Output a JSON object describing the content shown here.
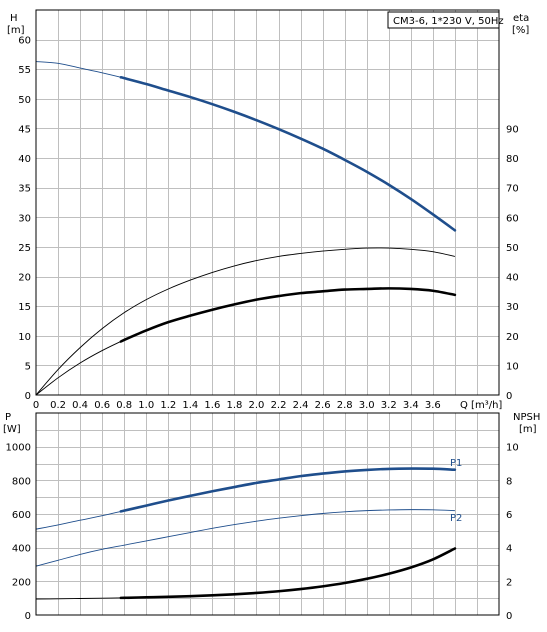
{
  "chart_data": [
    {
      "type": "line",
      "title_box": "CM3-6, 1*230 V, 50Hz",
      "xlabel": "Q [m³/h]",
      "ylabel_left": [
        "H",
        "[m]"
      ],
      "ylabel_right": [
        "eta",
        "[%]"
      ],
      "xlim": [
        0,
        4.2
      ],
      "ylim_left": [
        0,
        65
      ],
      "ylim_right": [
        0,
        130
      ],
      "x_ticks": [
        "0",
        "0.2",
        "0.4",
        "0.6",
        "0.8",
        "1.0",
        "1.2",
        "1.4",
        "1.6",
        "1.8",
        "2.0",
        "2.2",
        "2.4",
        "2.6",
        "2.8",
        "3.0",
        "3.2",
        "3.4",
        "3.6"
      ],
      "y_ticks_left": [
        "0",
        "5",
        "10",
        "15",
        "20",
        "25",
        "30",
        "35",
        "40",
        "45",
        "50",
        "55",
        "60"
      ],
      "y_ticks_right": [
        "0",
        "10",
        "20",
        "30",
        "40",
        "50",
        "60",
        "70",
        "80",
        "90"
      ],
      "grid": true,
      "series": [
        {
          "axis": "left",
          "color": "#1f4e8c",
          "x": [
            0,
            0.2,
            0.4,
            0.6,
            0.8,
            1.0,
            1.2,
            1.4,
            1.6,
            1.8,
            2.0,
            2.2,
            2.4,
            2.6,
            2.8,
            3.0,
            3.2,
            3.4,
            3.6,
            3.8
          ],
          "values": [
            56.3,
            56.0,
            55.2,
            54.4,
            53.5,
            52.5,
            51.4,
            50.3,
            49.1,
            47.8,
            46.4,
            44.9,
            43.3,
            41.6,
            39.7,
            37.7,
            35.5,
            33.1,
            30.5,
            27.8
          ],
          "bold_from": 0.77
        },
        {
          "axis": "left",
          "color": "#000000",
          "x": [
            0,
            0.2,
            0.4,
            0.6,
            0.8,
            1.0,
            1.2,
            1.4,
            1.6,
            1.8,
            2.0,
            2.2,
            2.4,
            2.6,
            2.8,
            3.0,
            3.2,
            3.4,
            3.6,
            3.8
          ],
          "values": [
            0,
            4.3,
            8.0,
            11.2,
            13.9,
            16.1,
            17.9,
            19.4,
            20.7,
            21.8,
            22.7,
            23.4,
            23.9,
            24.3,
            24.6,
            24.8,
            24.8,
            24.6,
            24.2,
            23.4
          ],
          "bold_from": null
        },
        {
          "axis": "left",
          "color": "#000000",
          "x": [
            0,
            0.2,
            0.4,
            0.6,
            0.8,
            1.0,
            1.2,
            1.4,
            1.6,
            1.8,
            2.0,
            2.2,
            2.4,
            2.6,
            2.8,
            3.0,
            3.2,
            3.4,
            3.6,
            3.8
          ],
          "values": [
            0,
            2.9,
            5.4,
            7.5,
            9.3,
            10.9,
            12.3,
            13.4,
            14.4,
            15.3,
            16.1,
            16.7,
            17.2,
            17.5,
            17.8,
            17.9,
            18.0,
            17.9,
            17.6,
            16.9
          ],
          "bold_from": 0.77
        }
      ]
    },
    {
      "type": "line",
      "xlim": [
        0,
        4.2
      ],
      "ylim_left": [
        0,
        1200
      ],
      "ylim_right": [
        0,
        12
      ],
      "ylabel_left": [
        "P",
        "[W]"
      ],
      "ylabel_right": [
        "NPSH",
        "[m]"
      ],
      "y_ticks_left": [
        "0",
        "200",
        "400",
        "600",
        "800",
        "1000"
      ],
      "y_ticks_right": [
        "0",
        "2",
        "4",
        "6",
        "8",
        "10"
      ],
      "grid": true,
      "series": [
        {
          "name": "P1",
          "axis": "left",
          "color": "#1f4e8c",
          "x": [
            0,
            0.2,
            0.4,
            0.6,
            0.8,
            1.0,
            1.2,
            1.4,
            1.6,
            1.8,
            2.0,
            2.2,
            2.4,
            2.6,
            2.8,
            3.0,
            3.2,
            3.4,
            3.6,
            3.8
          ],
          "values": [
            510,
            535,
            563,
            590,
            620,
            650,
            680,
            708,
            735,
            760,
            785,
            805,
            825,
            840,
            853,
            862,
            868,
            870,
            869,
            863
          ],
          "bold_from": 0.77
        },
        {
          "name": "P2",
          "axis": "left",
          "color": "#1f4e8c",
          "x": [
            0,
            0.2,
            0.4,
            0.6,
            0.8,
            1.0,
            1.2,
            1.4,
            1.6,
            1.8,
            2.0,
            2.2,
            2.4,
            2.6,
            2.8,
            3.0,
            3.2,
            3.4,
            3.6,
            3.8
          ],
          "values": [
            290,
            325,
            360,
            390,
            415,
            440,
            465,
            490,
            515,
            537,
            557,
            575,
            590,
            603,
            613,
            620,
            624,
            626,
            625,
            620
          ],
          "bold_from": null
        },
        {
          "axis": "right",
          "color": "#000000",
          "x": [
            0,
            0.2,
            0.4,
            0.6,
            0.8,
            1.0,
            1.2,
            1.4,
            1.6,
            1.8,
            2.0,
            2.2,
            2.4,
            2.6,
            2.8,
            3.0,
            3.2,
            3.4,
            3.6,
            3.8
          ],
          "values": [
            0.95,
            0.96,
            0.98,
            1.0,
            1.02,
            1.05,
            1.08,
            1.12,
            1.17,
            1.23,
            1.31,
            1.41,
            1.54,
            1.7,
            1.9,
            2.15,
            2.45,
            2.82,
            3.3,
            3.95
          ],
          "bold_from": 0.77
        }
      ]
    }
  ]
}
